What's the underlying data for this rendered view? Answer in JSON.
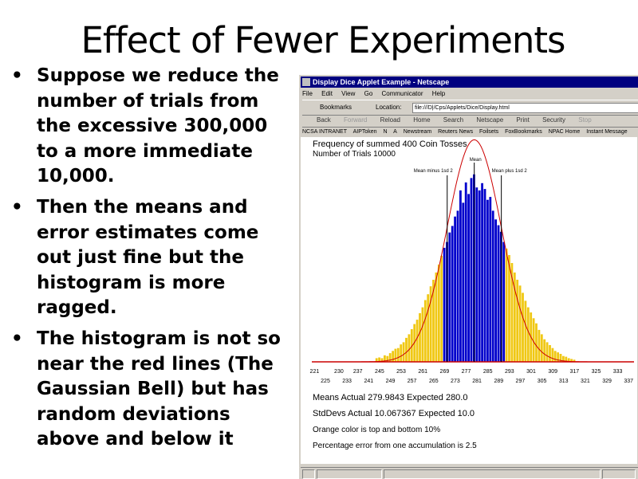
{
  "slide": {
    "title": "Effect of Fewer Experiments",
    "bullets": [
      "Suppose we reduce the number of trials from the excessive 300,000 to a more immediate 10,000.",
      "Then the means and error estimates come out just fine but the histogram is more ragged.",
      "The histogram is not so near the red lines (The Gaussian Bell) but has random deviations above and below it"
    ]
  },
  "browser": {
    "title": "Display Dice Applet Example - Netscape",
    "menu": [
      "File",
      "Edit",
      "View",
      "Go",
      "Communicator",
      "Help"
    ],
    "bookmarks_label": "Bookmarks",
    "location_label": "Location:",
    "url": "file:///D|/Cps/Applets/Dice/Display.html",
    "nav": [
      "Back",
      "Forward",
      "Reload",
      "Home",
      "Search",
      "Netscape",
      "Print",
      "Security",
      "Stop"
    ],
    "personal": [
      "NCSA INTRANET",
      "AIPToken",
      "N",
      "A",
      "Newstream",
      "Reuters News",
      "Foilsets",
      "FoxBookmarks",
      "NPAC Home",
      "Instant Message"
    ]
  },
  "applet": {
    "heading1": "Frequency of summed 400 Coin Tosses",
    "heading2": "Number of Trials 10000",
    "mean_label": "Mean",
    "minus_label": "Mean minus 1sd 2",
    "plus_label": "Mean plus 1sd 2",
    "text_lines": [
      "Means    Actual 279.9843 Expected 280.0",
      "StdDevs Actual 10.067367 Expected 10.0",
      "Orange color is top and bottom 10%",
      "Percentage error from one accumulation is 2.5"
    ]
  },
  "chart_data": {
    "type": "bar",
    "title": "Frequency of summed 400 Coin Tosses",
    "subtitle": "Number of Trials 10000",
    "x_ticks_top": [
      221,
      230,
      237,
      245,
      253,
      261,
      269,
      277,
      285,
      293,
      301,
      309,
      317,
      325,
      333
    ],
    "x_ticks_bottom": [
      225,
      233,
      241,
      249,
      257,
      265,
      273,
      281,
      289,
      297,
      305,
      313,
      321,
      329,
      337
    ],
    "xlim": [
      220,
      339
    ],
    "mean": 280,
    "stddev": 10,
    "colors": {
      "center": "#0000cc",
      "tails": "#f0c814",
      "gaussian": "#cc0000",
      "baseline": "#cc0000",
      "sd_lines": "#000000"
    },
    "counts": [
      [
        244,
        5
      ],
      [
        245,
        6
      ],
      [
        246,
        5
      ],
      [
        247,
        9
      ],
      [
        248,
        8
      ],
      [
        249,
        12
      ],
      [
        250,
        15
      ],
      [
        251,
        18
      ],
      [
        252,
        19
      ],
      [
        253,
        24
      ],
      [
        254,
        27
      ],
      [
        255,
        33
      ],
      [
        256,
        38
      ],
      [
        257,
        45
      ],
      [
        258,
        52
      ],
      [
        259,
        58
      ],
      [
        260,
        67
      ],
      [
        261,
        75
      ],
      [
        262,
        85
      ],
      [
        263,
        93
      ],
      [
        264,
        104
      ],
      [
        265,
        113
      ],
      [
        266,
        123
      ],
      [
        267,
        134
      ],
      [
        268,
        146
      ],
      [
        269,
        157
      ],
      [
        270,
        165
      ],
      [
        271,
        178
      ],
      [
        272,
        187
      ],
      [
        273,
        200
      ],
      [
        274,
        208
      ],
      [
        275,
        236
      ],
      [
        276,
        219
      ],
      [
        277,
        247
      ],
      [
        278,
        231
      ],
      [
        279,
        253
      ],
      [
        280,
        258
      ],
      [
        281,
        240
      ],
      [
        282,
        236
      ],
      [
        283,
        246
      ],
      [
        284,
        238
      ],
      [
        285,
        223
      ],
      [
        286,
        227
      ],
      [
        287,
        208
      ],
      [
        288,
        196
      ],
      [
        289,
        188
      ],
      [
        290,
        179
      ],
      [
        291,
        165
      ],
      [
        292,
        156
      ],
      [
        293,
        147
      ],
      [
        294,
        136
      ],
      [
        295,
        123
      ],
      [
        296,
        113
      ],
      [
        297,
        105
      ],
      [
        298,
        95
      ],
      [
        299,
        84
      ],
      [
        300,
        75
      ],
      [
        301,
        68
      ],
      [
        302,
        60
      ],
      [
        303,
        53
      ],
      [
        304,
        44
      ],
      [
        305,
        38
      ],
      [
        306,
        31
      ],
      [
        307,
        27
      ],
      [
        308,
        23
      ],
      [
        309,
        19
      ],
      [
        310,
        15
      ],
      [
        311,
        13
      ],
      [
        312,
        11
      ],
      [
        313,
        8
      ],
      [
        314,
        7
      ],
      [
        315,
        5
      ],
      [
        316,
        4
      ],
      [
        317,
        3
      ]
    ]
  }
}
